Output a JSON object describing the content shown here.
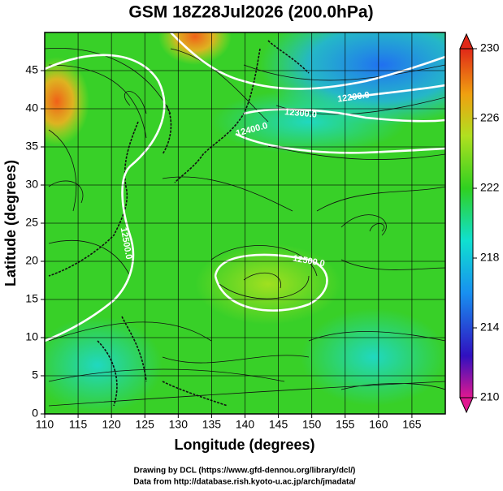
{
  "chart_data": {
    "type": "map",
    "title": "GSM 18Z28Jul2026 (200.0hPa)",
    "xlabel": "Longitude (degrees)",
    "ylabel": "Latitude  (degrees)",
    "xlim": [
      110,
      170
    ],
    "ylim": [
      0,
      50
    ],
    "xticks": [
      110,
      115,
      120,
      125,
      130,
      135,
      140,
      145,
      150,
      155,
      160,
      165
    ],
    "yticks": [
      0,
      5,
      10,
      15,
      20,
      25,
      30,
      35,
      40,
      45
    ],
    "grid": true,
    "colorbar": {
      "lim": [
        210,
        230
      ],
      "ticks": [
        210,
        214,
        218,
        222,
        226,
        230
      ]
    },
    "contour_labels": [
      "12200.0",
      "12300.0",
      "12400.0",
      "12500.0",
      "12500.0"
    ],
    "footer": [
      "Drawing by DCL (https://www.gfd-dennou.org/library/dcl/)",
      "Data from http://database.rish.kyoto-u.ac.jp/arch/jmadata/"
    ]
  }
}
